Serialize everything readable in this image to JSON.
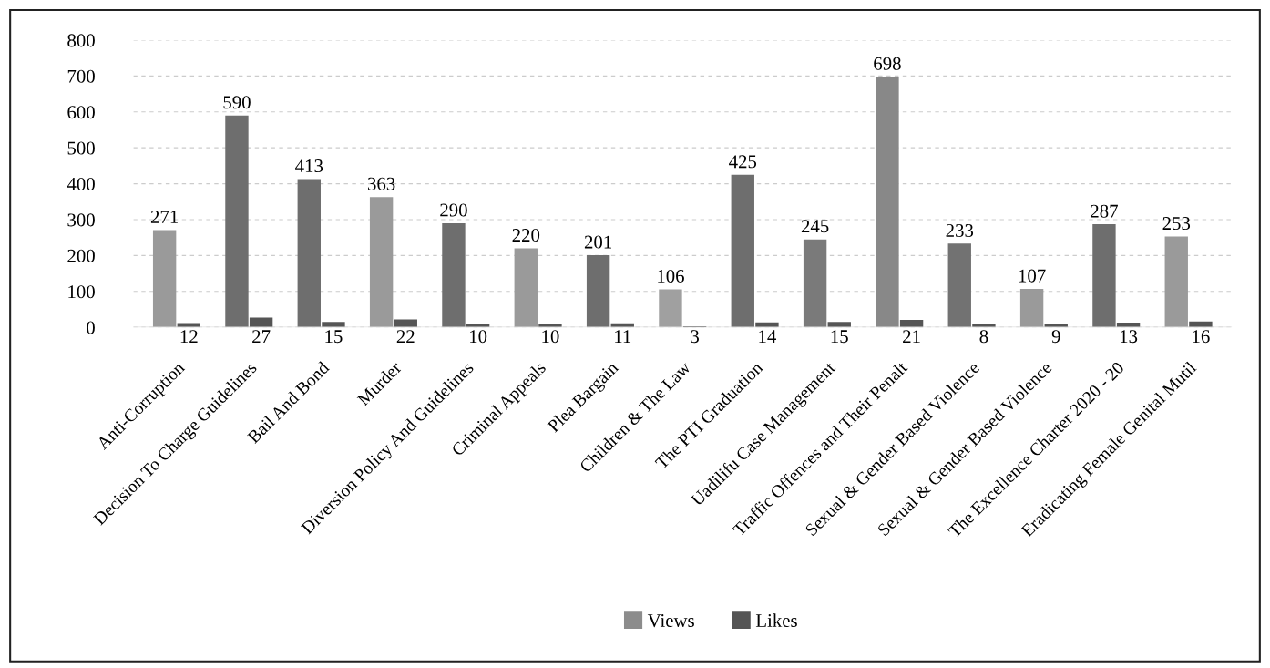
{
  "chart_data": {
    "type": "bar",
    "categories": [
      "Anti-Corruption",
      "Decision To Charge Guidelines",
      "Bail And Bond",
      "Murder",
      "Diversion Policy And Guidelines",
      "Criminal Appeals",
      "Plea Bargain",
      "Children & The Law",
      "The PTI Graduation",
      "Uadilifu Case Management",
      "Traffic Offences and Their Penalt",
      "Sexual & Gender Based Violence",
      "Sexual & Gender Based Violence",
      "The Excellence Charter 2020 - 20",
      "Eradicating Female Genital Mutil"
    ],
    "series": [
      {
        "name": "Views",
        "color": "#8c8c8c",
        "colors": [
          "#9a9a9a",
          "#6e6e6e",
          "#6e6e6e",
          "#9a9a9a",
          "#6e6e6e",
          "#9a9a9a",
          "#6e6e6e",
          "#a0a0a0",
          "#6e6e6e",
          "#7a7a7a",
          "#888888",
          "#727272",
          "#9a9a9a",
          "#6e6e6e",
          "#9a9a9a"
        ],
        "values": [
          271,
          590,
          413,
          363,
          290,
          220,
          201,
          106,
          425,
          245,
          698,
          233,
          107,
          287,
          253
        ]
      },
      {
        "name": "Likes",
        "color": "#555555",
        "values": [
          12,
          27,
          15,
          22,
          10,
          10,
          11,
          3,
          14,
          15,
          21,
          8,
          9,
          13,
          16
        ]
      }
    ],
    "ylim": [
      0,
      800
    ],
    "yticks": [
      0,
      100,
      200,
      300,
      400,
      500,
      600,
      700,
      800
    ],
    "grid": "y",
    "legend": "bottom",
    "data_labels": true
  }
}
